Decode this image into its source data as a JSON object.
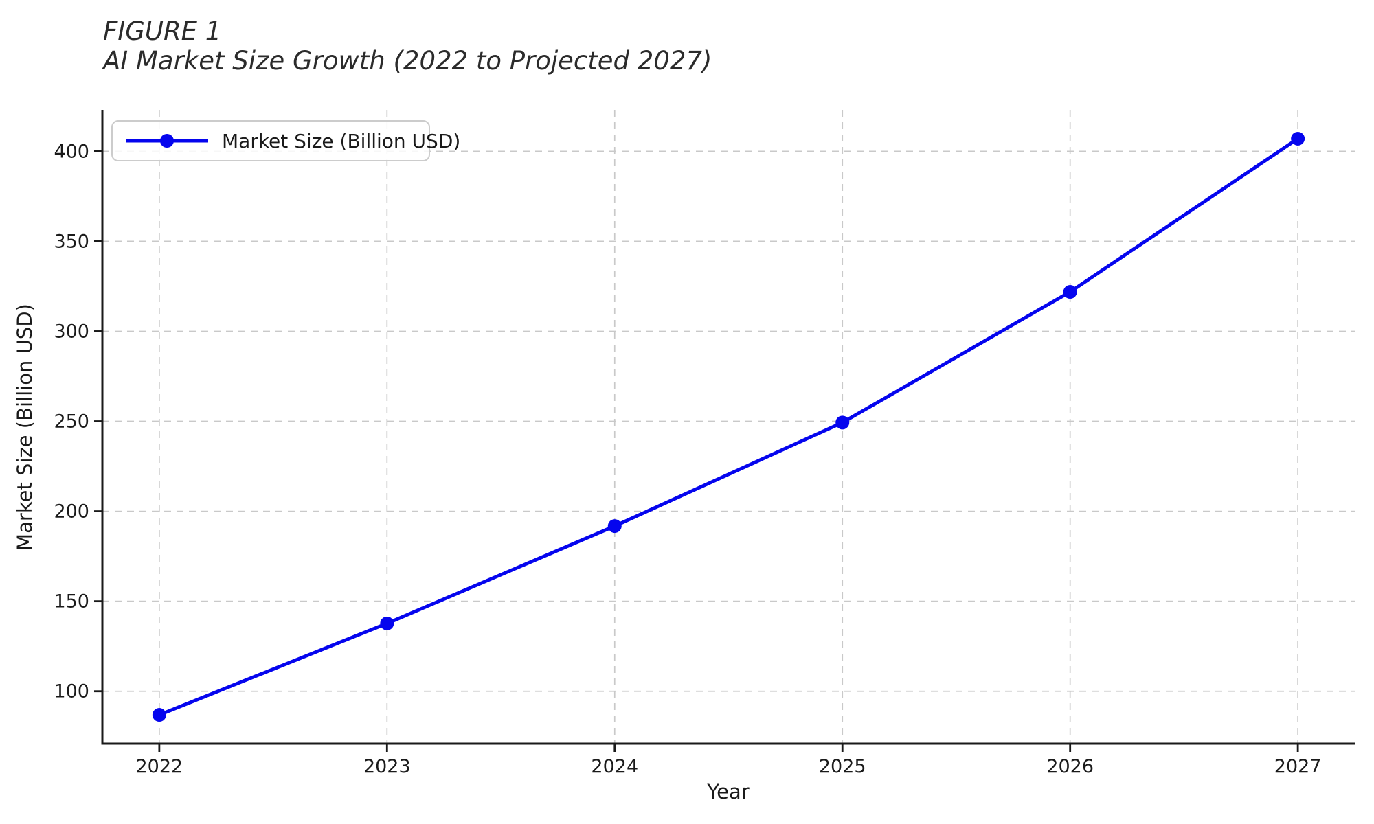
{
  "chart_data": {
    "type": "line",
    "figure_label": "FIGURE 1",
    "title": "AI Market Size Growth (2022 to Projected 2027)",
    "xlabel": "Year",
    "ylabel": "Market Size (Billion USD)",
    "x": [
      2022,
      2023,
      2024,
      2025,
      2026,
      2027
    ],
    "series": [
      {
        "name": "Market Size (Billion USD)",
        "values": [
          86.9,
          137.7,
          191.8,
          249.3,
          321.9,
          407.0
        ]
      }
    ],
    "xticks": [
      "2022",
      "2023",
      "2024",
      "2025",
      "2026",
      "2027"
    ],
    "yticks": [
      100,
      150,
      200,
      250,
      300,
      350,
      400
    ],
    "xlim": [
      2021.75,
      2027.25
    ],
    "ylim": [
      70.9,
      423.0
    ],
    "grid": true,
    "legend": {
      "label": "Market Size (Billion USD)",
      "position": "upper left"
    },
    "colors": {
      "line": "#0505ee",
      "grid": "#c9c9c9",
      "axis": "#1a1a1a",
      "legend_border": "#cccccc"
    }
  }
}
